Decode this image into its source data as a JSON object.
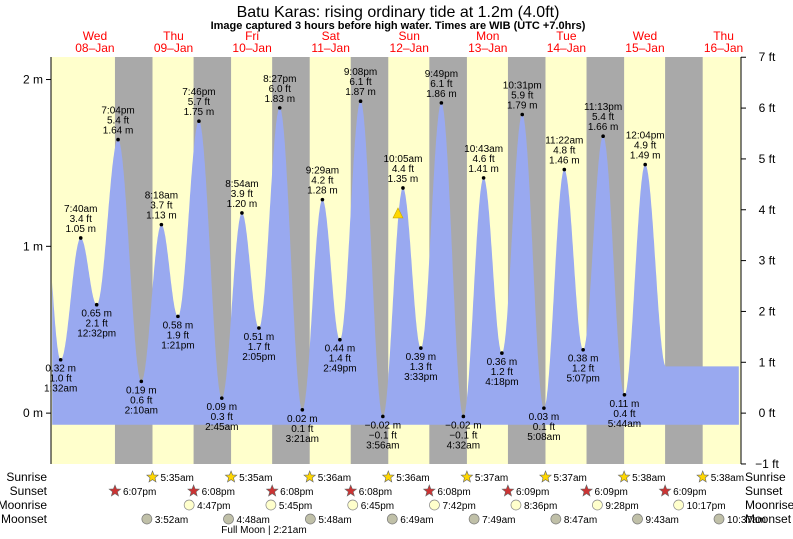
{
  "title": "Batu Karas: rising  ordinary tide at 1.2m (4.0ft)",
  "subtitle": "Image captured 3 hours before high water. Times are WIB (UTC +7.0hrs)",
  "colors": {
    "day": "#ffffcc",
    "night": "#a9a9a9",
    "tide": "#99a9f0",
    "day_label": "#ff0000",
    "sun_star": "#ffd700",
    "sunset_star": "#cc3333",
    "moon_full": "#ffffcc",
    "moon_set": "#c0c0a8"
  },
  "row_labels": {
    "sunrise": "Sunrise",
    "sunset": "Sunset",
    "moonrise": "Moonrise",
    "moonset": "Moonset"
  },
  "full_moon_note": "Full Moon | 2:21am",
  "days": [
    {
      "name": "Wed",
      "date": "08–Jan"
    },
    {
      "name": "Thu",
      "date": "09–Jan"
    },
    {
      "name": "Fri",
      "date": "10–Jan"
    },
    {
      "name": "Sat",
      "date": "11–Jan"
    },
    {
      "name": "Sun",
      "date": "12–Jan"
    },
    {
      "name": "Mon",
      "date": "13–Jan"
    },
    {
      "name": "Tue",
      "date": "14–Jan"
    },
    {
      "name": "Wed",
      "date": "15–Jan"
    },
    {
      "name": "Thu",
      "date": "16–Jan"
    }
  ],
  "sunrise": [
    "5:35am",
    "5:35am",
    "5:36am",
    "5:36am",
    "5:37am",
    "5:37am",
    "5:38am",
    "5:38am"
  ],
  "sunset": [
    "6:07pm",
    "6:08pm",
    "6:08pm",
    "6:08pm",
    "6:08pm",
    "6:09pm",
    "6:09pm",
    "6:09pm"
  ],
  "moonrise": [
    "4:47pm",
    "5:45pm",
    "6:45pm",
    "7:42pm",
    "8:36pm",
    "9:28pm",
    "10:17pm"
  ],
  "moonset": [
    "3:52am",
    "4:48am",
    "5:48am",
    "6:49am",
    "7:49am",
    "8:47am",
    "9:43am",
    "10:37am"
  ],
  "chart_data": {
    "type": "area",
    "title": "Batu Karas: rising  ordinary tide at 1.2m (4.0ft)",
    "left_axis": {
      "unit": "m",
      "ticks": [
        "0 m",
        "1 m",
        "2 m"
      ],
      "range": [
        -0.305,
        2.135
      ]
    },
    "right_axis": {
      "unit": "ft",
      "ticks": [
        "−1 ft",
        "0 ft",
        "1 ft",
        "2 ft",
        "3 ft",
        "4 ft",
        "5 ft",
        "6 ft",
        "7 ft"
      ]
    },
    "current_level_marker": {
      "level_m": 1.2
    },
    "tides": [
      {
        "type": "low",
        "time": "1:32 am",
        "m": 0.32,
        "ft": "1.0 ft"
      },
      {
        "type": "high",
        "time": "7:40 am",
        "m": 1.05,
        "ft": "3.4 ft"
      },
      {
        "type": "low",
        "time": "12:32 pm",
        "m": 0.65,
        "ft": "2.1 ft"
      },
      {
        "type": "high",
        "time": "7:04 pm",
        "m": 1.64,
        "ft": "5.4 ft"
      },
      {
        "type": "low",
        "time": "2:10 am",
        "m": 0.19,
        "ft": "0.6 ft"
      },
      {
        "type": "high",
        "time": "8:18 am",
        "m": 1.13,
        "ft": "3.7 ft"
      },
      {
        "type": "low",
        "time": "1:21 pm",
        "m": 0.58,
        "ft": "1.9 ft"
      },
      {
        "type": "high",
        "time": "7:46 pm",
        "m": 1.75,
        "ft": "5.7 ft"
      },
      {
        "type": "low",
        "time": "2:45 am",
        "m": 0.09,
        "ft": "0.3 ft"
      },
      {
        "type": "high",
        "time": "8:54 am",
        "m": 1.2,
        "ft": "3.9 ft"
      },
      {
        "type": "low",
        "time": "2:05 pm",
        "m": 0.51,
        "ft": "1.7 ft"
      },
      {
        "type": "high",
        "time": "8:27 pm",
        "m": 1.83,
        "ft": "6.0 ft"
      },
      {
        "type": "low",
        "time": "3:21 am",
        "m": 0.02,
        "ft": "0.1 ft"
      },
      {
        "type": "high",
        "time": "9:29 am",
        "m": 1.28,
        "ft": "4.2 ft"
      },
      {
        "type": "low",
        "time": "2:49 pm",
        "m": 0.44,
        "ft": "1.4 ft"
      },
      {
        "type": "high",
        "time": "9:08 pm",
        "m": 1.87,
        "ft": "6.1 ft"
      },
      {
        "type": "low",
        "time": "3:56 am",
        "m": -0.02,
        "ft": "−0.1 ft"
      },
      {
        "type": "high",
        "time": "10:05 am",
        "m": 1.35,
        "ft": "4.4 ft"
      },
      {
        "type": "low",
        "time": "3:33 pm",
        "m": 0.39,
        "ft": "1.3 ft"
      },
      {
        "type": "high",
        "time": "9:49 pm",
        "m": 1.86,
        "ft": "6.1 ft"
      },
      {
        "type": "low",
        "time": "4:32 am",
        "m": -0.02,
        "ft": "−0.1 ft"
      },
      {
        "type": "high",
        "time": "10:43 am",
        "m": 1.41,
        "ft": "4.6 ft"
      },
      {
        "type": "low",
        "time": "4:18 pm",
        "m": 0.36,
        "ft": "1.2 ft"
      },
      {
        "type": "high",
        "time": "10:31 pm",
        "m": 1.79,
        "ft": "5.9 ft"
      },
      {
        "type": "low",
        "time": "5:08 am",
        "m": 0.03,
        "ft": "0.1 ft"
      },
      {
        "type": "high",
        "time": "11:22 am",
        "m": 1.46,
        "ft": "4.8 ft"
      },
      {
        "type": "low",
        "time": "5:07 pm",
        "m": 0.38,
        "ft": "1.2 ft"
      },
      {
        "type": "high",
        "time": "11:13 pm",
        "m": 1.66,
        "ft": "5.4 ft"
      },
      {
        "type": "low",
        "time": "5:44 am",
        "m": 0.11,
        "ft": "0.4 ft"
      },
      {
        "type": "high",
        "time": "12:04 pm",
        "m": 1.49,
        "ft": "4.9 ft"
      }
    ]
  }
}
